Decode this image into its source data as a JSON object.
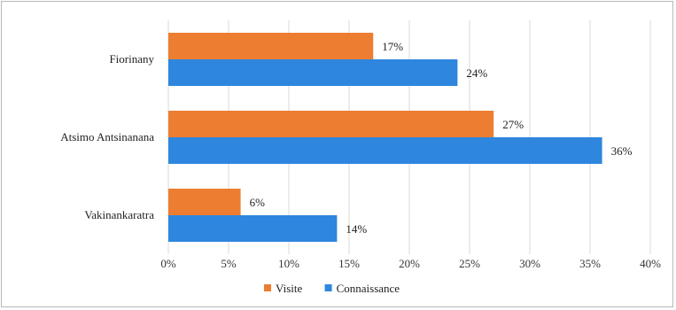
{
  "chart_data": {
    "type": "bar",
    "orientation": "horizontal",
    "categories": [
      "Fiorinany",
      "Atsimo Antsinanana",
      "Vakinankaratra"
    ],
    "series": [
      {
        "name": "Visite",
        "color": "#ED7D31",
        "values": [
          17,
          27,
          6
        ],
        "labels": [
          "17%",
          "27%",
          "6%"
        ]
      },
      {
        "name": "Connaissance",
        "color": "#2E86DE",
        "values": [
          24,
          36,
          14
        ],
        "labels": [
          "24%",
          "36%",
          "14%"
        ]
      }
    ],
    "xlim": [
      0,
      40
    ],
    "x_ticks": [
      0,
      5,
      10,
      15,
      20,
      25,
      30,
      35,
      40
    ],
    "x_tick_labels": [
      "0%",
      "5%",
      "10%",
      "15%",
      "20%",
      "25%",
      "30%",
      "35%",
      "40%"
    ],
    "grid": true,
    "legend_position": "bottom"
  }
}
